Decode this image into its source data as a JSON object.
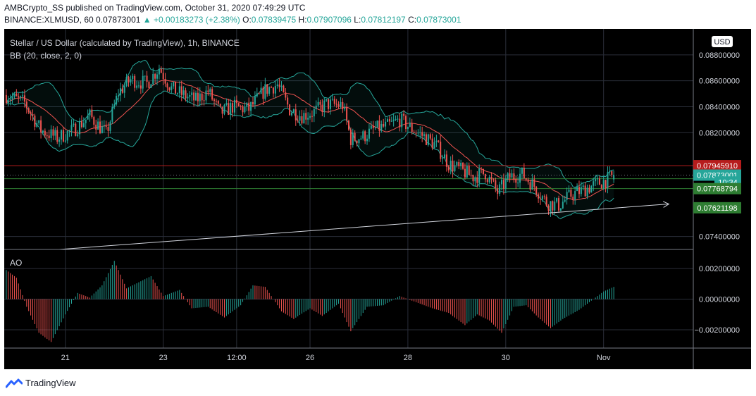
{
  "header": {
    "published_line": "AMBCrypto_SS published on TradingView.com, October 31, 2020 07:49:29 UTC",
    "symbol": "BINANCE:XLMUSD, 60",
    "last": "0.07873001",
    "change": "▲ +0.00183273 (+2.38%)",
    "o_label": "O:",
    "o_value": "0.07839475",
    "h_label": "H:",
    "h_value": "0.07907096",
    "l_label": "L:",
    "l_value": "0.07812197",
    "c_label": "C:",
    "c_value": "0.07873001"
  },
  "colors": {
    "background": "#000000",
    "bull": "#26a69a",
    "bear": "#ef5350",
    "bb_band": "#26a69a",
    "bb_basis": "#ef5350",
    "grid": "#2a2e39",
    "text": "#d1d4dc"
  },
  "chart_data": [
    {
      "type": "line",
      "title": "Stellar / US Dollar (calculated by TradingView), 1h, BINANCE",
      "indicator": "BB (20, close, 2, 0)",
      "currency": "USD",
      "ylim": [
        0.073,
        0.09
      ],
      "y_ticks": [
        "0.07400000",
        "0.08200000",
        "0.08400000",
        "0.08600000",
        "0.08800000"
      ],
      "y_tick_values": [
        0.074,
        0.082,
        0.084,
        0.086,
        0.088
      ],
      "x_tick_labels": [
        "21",
        "23",
        "12:00",
        "26",
        "28",
        "30",
        "Nov"
      ],
      "x_tick_hours": [
        0,
        48,
        84,
        120,
        168,
        216,
        264
      ],
      "x_range_hours": [
        -30,
        308
      ],
      "close_keypoints": [
        {
          "x": -29,
          "y": 0.0849
        },
        {
          "x": -20,
          "y": 0.0843
        },
        {
          "x": -12,
          "y": 0.0822
        },
        {
          "x": -4,
          "y": 0.0816
        },
        {
          "x": 4,
          "y": 0.0822
        },
        {
          "x": 12,
          "y": 0.0833
        },
        {
          "x": 20,
          "y": 0.0819
        },
        {
          "x": 26,
          "y": 0.0851
        },
        {
          "x": 32,
          "y": 0.0861
        },
        {
          "x": 40,
          "y": 0.0858
        },
        {
          "x": 46,
          "y": 0.087
        },
        {
          "x": 52,
          "y": 0.0854
        },
        {
          "x": 58,
          "y": 0.0849
        },
        {
          "x": 64,
          "y": 0.0845
        },
        {
          "x": 70,
          "y": 0.0852
        },
        {
          "x": 76,
          "y": 0.0835
        },
        {
          "x": 82,
          "y": 0.084
        },
        {
          "x": 90,
          "y": 0.0838
        },
        {
          "x": 98,
          "y": 0.0853
        },
        {
          "x": 104,
          "y": 0.0857
        },
        {
          "x": 110,
          "y": 0.0838
        },
        {
          "x": 116,
          "y": 0.0833
        },
        {
          "x": 122,
          "y": 0.0836
        },
        {
          "x": 128,
          "y": 0.0842
        },
        {
          "x": 136,
          "y": 0.0841
        },
        {
          "x": 140,
          "y": 0.0815
        },
        {
          "x": 146,
          "y": 0.0817
        },
        {
          "x": 152,
          "y": 0.0823
        },
        {
          "x": 158,
          "y": 0.0825
        },
        {
          "x": 164,
          "y": 0.083
        },
        {
          "x": 170,
          "y": 0.0823
        },
        {
          "x": 176,
          "y": 0.0817
        },
        {
          "x": 182,
          "y": 0.081
        },
        {
          "x": 188,
          "y": 0.0796
        },
        {
          "x": 194,
          "y": 0.0791
        },
        {
          "x": 200,
          "y": 0.0786
        },
        {
          "x": 206,
          "y": 0.0789
        },
        {
          "x": 212,
          "y": 0.0774
        },
        {
          "x": 218,
          "y": 0.0786
        },
        {
          "x": 224,
          "y": 0.0788
        },
        {
          "x": 230,
          "y": 0.0779
        },
        {
          "x": 236,
          "y": 0.0766
        },
        {
          "x": 242,
          "y": 0.0764
        },
        {
          "x": 248,
          "y": 0.0772
        },
        {
          "x": 254,
          "y": 0.0776
        },
        {
          "x": 260,
          "y": 0.078
        },
        {
          "x": 266,
          "y": 0.0784
        },
        {
          "x": 269,
          "y": 0.0787
        }
      ],
      "price_tags": [
        {
          "label": "0.07945910",
          "value": 0.0794591,
          "color": "#b71c1c"
        },
        {
          "label": "0.07873001",
          "value": 0.07873001,
          "color": "#26a69a"
        },
        {
          "label": "10:34",
          "value": 0.0782,
          "color": "#26a69a"
        },
        {
          "label": "0.07768794",
          "value": 0.07768794,
          "color": "#2e7d32"
        },
        {
          "label": "0.07621198",
          "value": 0.07621198,
          "color": "#2e7d32"
        }
      ],
      "horizontal_lines": [
        {
          "value": 0.0794591,
          "color": "#b71c1c"
        },
        {
          "value": 0.07873001,
          "color": "#787b86",
          "dotted": true
        },
        {
          "value": 0.07845,
          "color": "#2e7d32"
        },
        {
          "value": 0.07768794,
          "color": "#2e7d32"
        }
      ],
      "trend_arrow": [
        {
          "x": -3,
          "y": 0.073
        },
        {
          "x": 296,
          "y": 0.0765
        }
      ]
    },
    {
      "type": "bar",
      "title": "AO",
      "ylim": [
        -0.0032,
        0.0032
      ],
      "y_ticks": [
        "0.00200000",
        "0.00000000",
        "−0.00200000"
      ],
      "y_tick_values": [
        0.002,
        0.0,
        -0.002
      ],
      "ao_keypoints": [
        {
          "x": -29,
          "y": 0.0019
        },
        {
          "x": -24,
          "y": 0.0014
        },
        {
          "x": -19,
          "y": -0.0005
        },
        {
          "x": -13,
          "y": -0.0022
        },
        {
          "x": -7,
          "y": -0.0028
        },
        {
          "x": 0,
          "y": -0.001
        },
        {
          "x": 6,
          "y": 0.0004
        },
        {
          "x": 12,
          "y": 0.0001
        },
        {
          "x": 18,
          "y": 0.0009
        },
        {
          "x": 24,
          "y": 0.0025
        },
        {
          "x": 30,
          "y": 0.0007
        },
        {
          "x": 36,
          "y": 0.0011
        },
        {
          "x": 42,
          "y": 0.0015
        },
        {
          "x": 48,
          "y": 0.0002
        },
        {
          "x": 56,
          "y": 0.0006
        },
        {
          "x": 62,
          "y": -0.0006
        },
        {
          "x": 70,
          "y": -0.0005
        },
        {
          "x": 78,
          "y": -0.0012
        },
        {
          "x": 86,
          "y": -0.0004
        },
        {
          "x": 92,
          "y": 0.0009
        },
        {
          "x": 98,
          "y": 0.0008
        },
        {
          "x": 106,
          "y": -0.0008
        },
        {
          "x": 112,
          "y": -0.0013
        },
        {
          "x": 120,
          "y": -0.0006
        },
        {
          "x": 126,
          "y": -0.0011
        },
        {
          "x": 134,
          "y": -0.0003
        },
        {
          "x": 140,
          "y": -0.0021
        },
        {
          "x": 148,
          "y": -0.0005
        },
        {
          "x": 156,
          "y": -0.0004
        },
        {
          "x": 164,
          "y": 0.0002
        },
        {
          "x": 172,
          "y": -0.0002
        },
        {
          "x": 180,
          "y": -0.0006
        },
        {
          "x": 188,
          "y": -0.0009
        },
        {
          "x": 196,
          "y": -0.0017
        },
        {
          "x": 202,
          "y": -0.001
        },
        {
          "x": 208,
          "y": -0.0014
        },
        {
          "x": 214,
          "y": -0.0022
        },
        {
          "x": 220,
          "y": -0.0005
        },
        {
          "x": 226,
          "y": -0.0004
        },
        {
          "x": 232,
          "y": -0.0012
        },
        {
          "x": 238,
          "y": -0.0019
        },
        {
          "x": 244,
          "y": -0.0013
        },
        {
          "x": 252,
          "y": -0.0007
        },
        {
          "x": 258,
          "y": -0.0001
        },
        {
          "x": 264,
          "y": 0.0005
        },
        {
          "x": 269,
          "y": 0.0008
        }
      ]
    }
  ],
  "footer": {
    "brand": "TradingView"
  }
}
